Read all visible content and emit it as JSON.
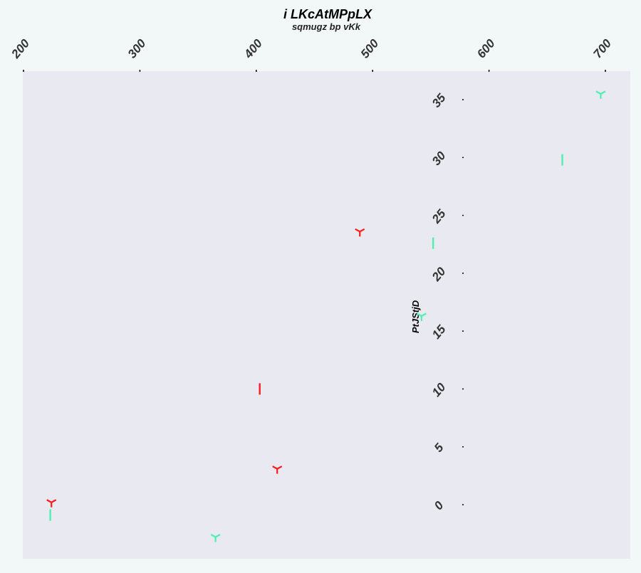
{
  "chart_data": {
    "type": "scatter",
    "title": "i  LKcAtMPpLX",
    "subtitle": "sqmugz bp vKk",
    "xlabel": "",
    "ylabel": "PtJStjD",
    "xlim": [
      200,
      722
    ],
    "ylim": [
      -4.7,
      37.3
    ],
    "x_ticks": [
      200,
      300,
      400,
      500,
      600,
      700
    ],
    "y_ticks": [
      0,
      5,
      10,
      15,
      20,
      25,
      30,
      35
    ],
    "x_axis_position": "top",
    "y_axis_position": "inside",
    "grid": false,
    "series": [
      {
        "color": "#ff1a1a",
        "points": [
          {
            "x": 224,
            "y": 0.2,
            "marker": "tri"
          },
          {
            "x": 403,
            "y": 10.0,
            "marker": "vline"
          },
          {
            "x": 418,
            "y": 3.1,
            "marker": "tri"
          },
          {
            "x": 489,
            "y": 23.6,
            "marker": "tri"
          }
        ]
      },
      {
        "color": "#4ef0b0",
        "points": [
          {
            "x": 223,
            "y": -0.9,
            "marker": "vline"
          },
          {
            "x": 365,
            "y": -2.8,
            "marker": "tri"
          },
          {
            "x": 542,
            "y": 16.3,
            "marker": "tri"
          },
          {
            "x": 552,
            "y": 22.6,
            "marker": "vline"
          },
          {
            "x": 663,
            "y": 29.8,
            "marker": "vline"
          },
          {
            "x": 696,
            "y": 35.5,
            "marker": "tri"
          }
        ]
      }
    ]
  }
}
